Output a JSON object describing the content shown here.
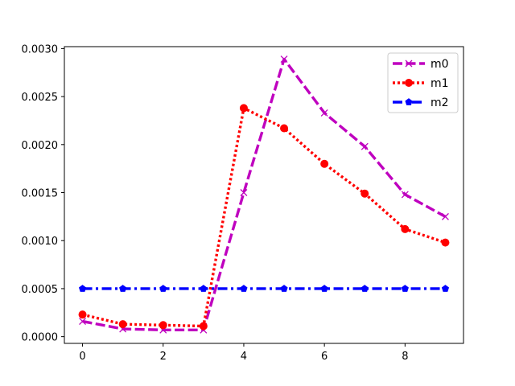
{
  "chart_data": {
    "type": "line",
    "title": "",
    "xlabel": "",
    "ylabel": "",
    "xlim": [
      -0.45,
      9.45
    ],
    "ylim": [
      -7e-05,
      0.00302
    ],
    "x": [
      0,
      1,
      2,
      3,
      4,
      5,
      6,
      7,
      8,
      9
    ],
    "x_ticks": [
      0,
      2,
      4,
      6,
      8
    ],
    "x_tick_labels": [
      "0",
      "2",
      "4",
      "6",
      "8"
    ],
    "y_ticks": [
      0,
      0.0005,
      0.001,
      0.0015,
      0.002,
      0.0025,
      0.003
    ],
    "y_tick_labels": [
      "0.0000",
      "0.0005",
      "0.0010",
      "0.0015",
      "0.0020",
      "0.0025",
      "0.0030"
    ],
    "grid": false,
    "legend_position": "top-right",
    "series": [
      {
        "name": "m0",
        "color": "#bf00bf",
        "line_style": "dashed",
        "marker": "x",
        "values": [
          0.00016,
          8e-05,
          7e-05,
          7e-05,
          0.0015,
          0.00289,
          0.00233,
          0.00198,
          0.00148,
          0.00125
        ]
      },
      {
        "name": "m1",
        "color": "#ff0000",
        "line_style": "dotted",
        "marker": "circle",
        "values": [
          0.00023,
          0.00013,
          0.00012,
          0.00011,
          0.00238,
          0.00217,
          0.0018,
          0.00149,
          0.00112,
          0.00098
        ]
      },
      {
        "name": "m2",
        "color": "#0000ff",
        "line_style": "dashdot",
        "marker": "pentagon",
        "values": [
          0.0005,
          0.0005,
          0.0005,
          0.0005,
          0.0005,
          0.0005,
          0.0005,
          0.0005,
          0.0005,
          0.0005
        ]
      }
    ]
  }
}
